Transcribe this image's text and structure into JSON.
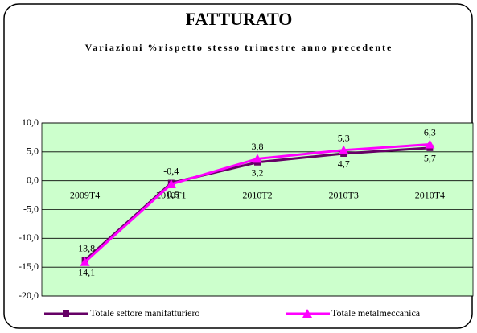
{
  "chart_data": {
    "type": "line",
    "title": "FATTURATO",
    "subtitle": "Variazioni %rispetto stesso trimestre anno precedente",
    "categories": [
      "2009T4",
      "2010T1",
      "2010T2",
      "2010T3",
      "2010T4"
    ],
    "series": [
      {
        "name": "Totale settore manifatturiero",
        "color": "#660066",
        "marker": "square",
        "values": [
          -13.8,
          -0.4,
          3.2,
          4.7,
          5.7
        ],
        "value_labels": [
          "-13,8",
          "-0,4",
          "3,2",
          "4,7",
          "5,7"
        ]
      },
      {
        "name": "Totale metalmeccanica",
        "color": "#ff00ff",
        "marker": "triangle",
        "values": [
          -14.1,
          -0.6,
          3.8,
          5.3,
          6.3
        ],
        "value_labels": [
          "-14,1",
          "-0,6",
          "3,8",
          "5,3",
          "6,3"
        ]
      }
    ],
    "ylim": [
      -20,
      10
    ],
    "yticks": [
      {
        "value": -20,
        "label": "-20,0"
      },
      {
        "value": -15,
        "label": "-15,0"
      },
      {
        "value": -10,
        "label": "-10,0"
      },
      {
        "value": -5,
        "label": "-5,0"
      },
      {
        "value": 0,
        "label": "0,0"
      },
      {
        "value": 5,
        "label": "5,0"
      },
      {
        "value": 10,
        "label": "10,0"
      }
    ],
    "grid": true,
    "legend": "bottom"
  }
}
